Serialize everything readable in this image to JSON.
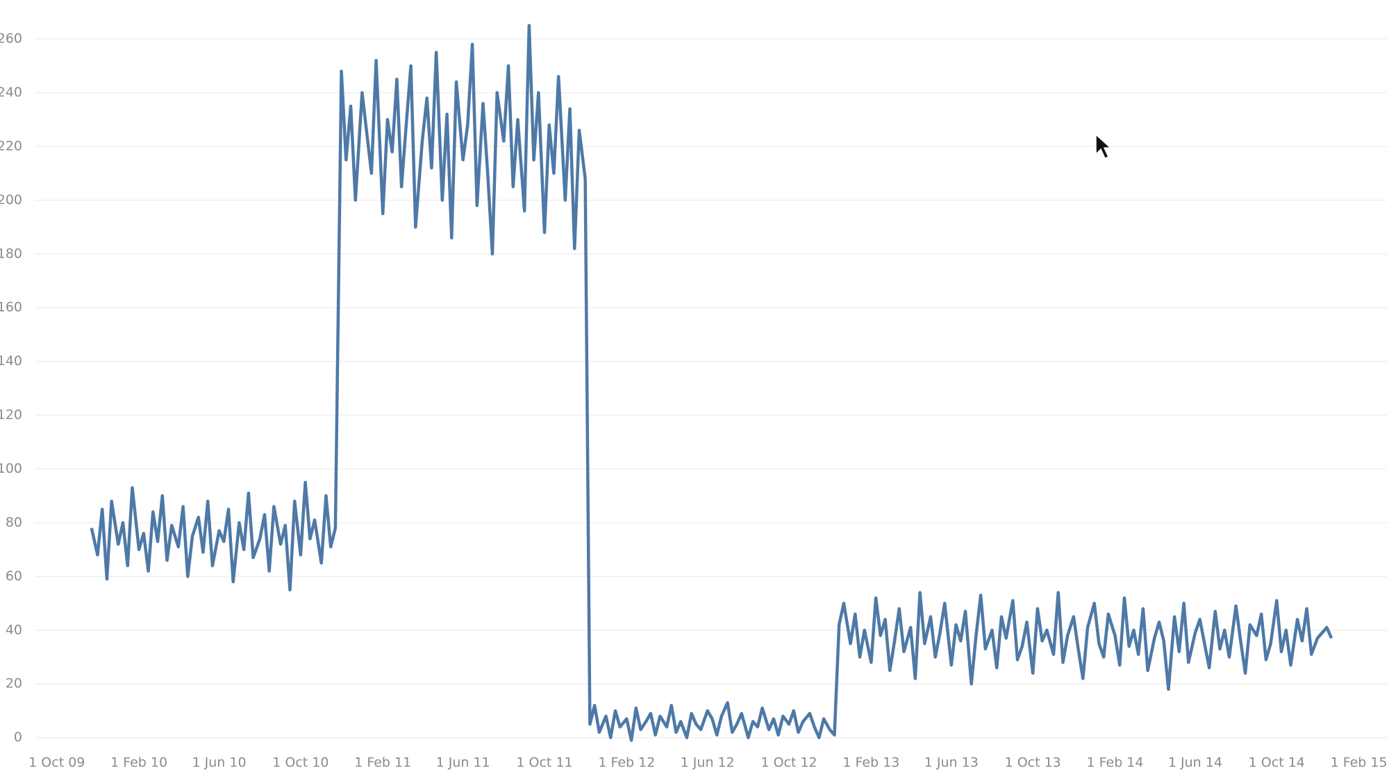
{
  "chart_data": {
    "type": "line",
    "x": [
      "2009-11-22",
      "2009-12-01",
      "2009-12-08",
      "2009-12-15",
      "2009-12-22",
      "2010-01-01",
      "2010-01-08",
      "2010-01-15",
      "2010-01-22",
      "2010-02-01",
      "2010-02-08",
      "2010-02-15",
      "2010-02-22",
      "2010-03-01",
      "2010-03-08",
      "2010-03-15",
      "2010-03-22",
      "2010-04-01",
      "2010-04-08",
      "2010-04-15",
      "2010-04-22",
      "2010-05-01",
      "2010-05-08",
      "2010-05-15",
      "2010-05-22",
      "2010-06-01",
      "2010-06-08",
      "2010-06-15",
      "2010-06-22",
      "2010-07-01",
      "2010-07-08",
      "2010-07-15",
      "2010-07-22",
      "2010-08-01",
      "2010-08-08",
      "2010-08-15",
      "2010-08-22",
      "2010-09-01",
      "2010-09-08",
      "2010-09-15",
      "2010-09-22",
      "2010-10-01",
      "2010-10-08",
      "2010-10-15",
      "2010-10-22",
      "2010-11-01",
      "2010-11-08",
      "2010-11-15",
      "2010-11-22",
      "2010-12-01",
      "2010-12-08",
      "2010-12-15",
      "2010-12-22",
      "2011-01-01",
      "2011-01-08",
      "2011-01-15",
      "2011-01-22",
      "2011-02-01",
      "2011-02-08",
      "2011-02-15",
      "2011-02-22",
      "2011-03-01",
      "2011-03-08",
      "2011-03-15",
      "2011-03-22",
      "2011-04-01",
      "2011-04-08",
      "2011-04-15",
      "2011-04-22",
      "2011-05-01",
      "2011-05-08",
      "2011-05-15",
      "2011-05-22",
      "2011-06-01",
      "2011-06-08",
      "2011-06-15",
      "2011-06-22",
      "2011-07-01",
      "2011-07-08",
      "2011-07-15",
      "2011-07-22",
      "2011-08-01",
      "2011-08-08",
      "2011-08-15",
      "2011-08-22",
      "2011-09-01",
      "2011-09-08",
      "2011-09-15",
      "2011-09-22",
      "2011-10-01",
      "2011-10-08",
      "2011-10-15",
      "2011-10-22",
      "2011-11-01",
      "2011-11-08",
      "2011-11-15",
      "2011-11-22",
      "2011-12-01",
      "2011-12-08",
      "2011-12-15",
      "2011-12-22",
      "2012-01-01",
      "2012-01-08",
      "2012-01-15",
      "2012-01-22",
      "2012-02-01",
      "2012-02-08",
      "2012-02-15",
      "2012-02-22",
      "2012-03-01",
      "2012-03-08",
      "2012-03-15",
      "2012-03-22",
      "2012-04-01",
      "2012-04-08",
      "2012-04-15",
      "2012-04-22",
      "2012-05-01",
      "2012-05-08",
      "2012-05-15",
      "2012-05-22",
      "2012-06-01",
      "2012-06-08",
      "2012-06-15",
      "2012-06-22",
      "2012-07-01",
      "2012-07-08",
      "2012-07-15",
      "2012-07-22",
      "2012-08-01",
      "2012-08-08",
      "2012-08-15",
      "2012-08-22",
      "2012-09-01",
      "2012-09-08",
      "2012-09-15",
      "2012-09-22",
      "2012-10-01",
      "2012-10-08",
      "2012-10-15",
      "2012-10-22",
      "2012-11-01",
      "2012-11-08",
      "2012-11-15",
      "2012-11-22",
      "2012-12-01",
      "2012-12-08",
      "2012-12-15",
      "2012-12-22",
      "2013-01-01",
      "2013-01-08",
      "2013-01-15",
      "2013-01-22",
      "2013-02-01",
      "2013-02-08",
      "2013-02-15",
      "2013-02-22",
      "2013-03-01",
      "2013-03-08",
      "2013-03-15",
      "2013-03-22",
      "2013-04-01",
      "2013-04-08",
      "2013-04-15",
      "2013-04-22",
      "2013-05-01",
      "2013-05-08",
      "2013-05-15",
      "2013-05-22",
      "2013-06-01",
      "2013-06-08",
      "2013-06-15",
      "2013-06-22",
      "2013-07-01",
      "2013-07-08",
      "2013-07-15",
      "2013-07-22",
      "2013-08-01",
      "2013-08-08",
      "2013-08-15",
      "2013-08-22",
      "2013-09-01",
      "2013-09-08",
      "2013-09-15",
      "2013-09-22",
      "2013-10-01",
      "2013-10-08",
      "2013-10-15",
      "2013-10-22",
      "2013-11-01",
      "2013-11-08",
      "2013-11-15",
      "2013-11-22",
      "2013-12-01",
      "2013-12-08",
      "2013-12-15",
      "2013-12-22",
      "2014-01-01",
      "2014-01-08",
      "2014-01-15",
      "2014-01-22",
      "2014-02-01",
      "2014-02-08",
      "2014-02-15",
      "2014-02-22",
      "2014-03-01",
      "2014-03-08",
      "2014-03-15",
      "2014-03-22",
      "2014-04-01",
      "2014-04-08",
      "2014-04-15",
      "2014-04-22",
      "2014-05-01",
      "2014-05-08",
      "2014-05-15",
      "2014-05-22",
      "2014-06-01",
      "2014-06-08",
      "2014-06-15",
      "2014-06-22",
      "2014-07-01",
      "2014-07-08",
      "2014-07-15",
      "2014-07-22",
      "2014-08-01",
      "2014-08-08",
      "2014-08-15",
      "2014-08-22",
      "2014-09-01",
      "2014-09-08",
      "2014-09-15",
      "2014-09-22",
      "2014-10-01",
      "2014-10-08",
      "2014-10-15",
      "2014-10-22",
      "2014-11-01",
      "2014-11-08",
      "2014-11-15",
      "2014-11-22",
      "2014-12-01",
      "2014-12-08",
      "2014-12-15",
      "2014-12-22"
    ],
    "values": [
      78,
      68,
      85,
      59,
      88,
      72,
      80,
      64,
      93,
      70,
      76,
      62,
      84,
      73,
      90,
      66,
      79,
      71,
      86,
      60,
      75,
      82,
      69,
      88,
      64,
      77,
      73,
      85,
      58,
      80,
      70,
      91,
      67,
      74,
      83,
      62,
      86,
      72,
      79,
      55,
      88,
      68,
      95,
      74,
      81,
      65,
      90,
      71,
      78,
      248,
      215,
      235,
      200,
      240,
      225,
      210,
      252,
      195,
      230,
      218,
      245,
      205,
      228,
      250,
      190,
      222,
      238,
      212,
      255,
      200,
      232,
      186,
      244,
      215,
      228,
      258,
      198,
      236,
      210,
      180,
      240,
      222,
      250,
      205,
      230,
      196,
      265,
      215,
      240,
      188,
      228,
      210,
      246,
      200,
      234,
      182,
      226,
      208,
      5,
      12,
      2,
      8,
      0,
      10,
      4,
      7,
      -1,
      11,
      3,
      6,
      9,
      1,
      8,
      4,
      12,
      2,
      6,
      0,
      9,
      5,
      3,
      10,
      7,
      1,
      8,
      13,
      2,
      5,
      9,
      0,
      6,
      4,
      11,
      3,
      7,
      1,
      8,
      5,
      10,
      2,
      6,
      9,
      4,
      0,
      7,
      3,
      1,
      42,
      50,
      35,
      46,
      30,
      40,
      28,
      52,
      38,
      44,
      25,
      36,
      48,
      32,
      41,
      22,
      54,
      35,
      45,
      30,
      39,
      50,
      27,
      42,
      36,
      47,
      20,
      38,
      53,
      33,
      40,
      26,
      45,
      37,
      51,
      29,
      34,
      43,
      24,
      48,
      36,
      40,
      31,
      54,
      28,
      38,
      45,
      33,
      22,
      41,
      50,
      35,
      30,
      46,
      38,
      27,
      52,
      34,
      40,
      31,
      48,
      25,
      37,
      43,
      36,
      18,
      45,
      32,
      50,
      28,
      39,
      44,
      35,
      26,
      47,
      33,
      40,
      30,
      49,
      36,
      24,
      42,
      38,
      46,
      29,
      35,
      51,
      32,
      40,
      27,
      44,
      36,
      48,
      31,
      37,
      39,
      41,
      37
    ],
    "color": "#4e79a7",
    "xlim": [
      "2009-08-30",
      "2015-03-15"
    ],
    "xticks": [
      {
        "value": "2009-10-01",
        "label": "1 Oct 09"
      },
      {
        "value": "2010-02-01",
        "label": "1 Feb 10"
      },
      {
        "value": "2010-06-01",
        "label": "1 Jun 10"
      },
      {
        "value": "2010-10-01",
        "label": "1 Oct 10"
      },
      {
        "value": "2011-02-01",
        "label": "1 Feb 11"
      },
      {
        "value": "2011-06-01",
        "label": "1 Jun 11"
      },
      {
        "value": "2011-10-01",
        "label": "1 Oct 11"
      },
      {
        "value": "2012-02-01",
        "label": "1 Feb 12"
      },
      {
        "value": "2012-06-01",
        "label": "1 Jun 12"
      },
      {
        "value": "2012-10-01",
        "label": "1 Oct 12"
      },
      {
        "value": "2013-02-01",
        "label": "1 Feb 13"
      },
      {
        "value": "2013-06-01",
        "label": "1 Jun 13"
      },
      {
        "value": "2013-10-01",
        "label": "1 Oct 13"
      },
      {
        "value": "2014-02-01",
        "label": "1 Feb 14"
      },
      {
        "value": "2014-06-01",
        "label": "1 Jun 14"
      },
      {
        "value": "2014-10-01",
        "label": "1 Oct 14"
      },
      {
        "value": "2015-02-01",
        "label": "1 Feb 15"
      }
    ],
    "ylim": [
      -5,
      270
    ],
    "yticks": [
      0,
      20,
      40,
      60,
      80,
      100,
      120,
      140,
      160,
      180,
      200,
      220,
      240,
      260
    ],
    "grid": true
  }
}
